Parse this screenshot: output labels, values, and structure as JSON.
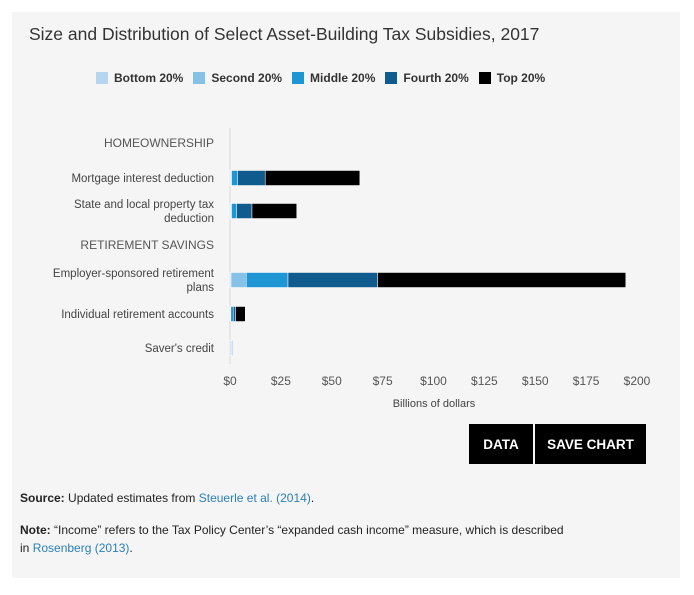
{
  "title": "Size and Distribution of Select Asset-Building Tax Subsidies, 2017",
  "colors": {
    "bottom": "#b7d5ef",
    "second": "#86c1e8",
    "middle": "#1f96d4",
    "fourth": "#0f5b8d",
    "top": "#000000"
  },
  "chart_data": {
    "type": "bar",
    "orientation": "horizontal",
    "stacked": true,
    "title": "Size and Distribution of Select Asset-Building Tax Subsidies, 2017",
    "xlabel": "Billions of dollars",
    "xlim": [
      0,
      200
    ],
    "xticks": [
      0,
      25,
      50,
      75,
      100,
      125,
      150,
      175,
      200
    ],
    "xtick_labels": [
      "$0",
      "$25",
      "$50",
      "$75",
      "$100",
      "$125",
      "$150",
      "$175",
      "$200"
    ],
    "legend_position": "top",
    "grid": false,
    "rows": [
      {
        "label": "HOMEOWNERSHIP",
        "is_header": true,
        "values": []
      },
      {
        "label": "Mortgage interest deduction",
        "is_header": false,
        "values": [
          0.3,
          0.5,
          3,
          13.5,
          46.5
        ]
      },
      {
        "label": "State and local property tax deduction",
        "label_lines": [
          "State and local property tax",
          "deduction"
        ],
        "is_header": false,
        "values": [
          0.3,
          0.5,
          2.5,
          7.5,
          22
        ]
      },
      {
        "label": "RETIREMENT SAVINGS",
        "is_header": true,
        "values": []
      },
      {
        "label": "Employer-sponsored retirement plans",
        "label_lines": [
          "Employer-sponsored retirement",
          "plans"
        ],
        "is_header": false,
        "values": [
          0.5,
          7.5,
          20.5,
          44,
          122
        ]
      },
      {
        "label": "Individual retirement accounts",
        "is_header": false,
        "values": [
          0.1,
          0.3,
          1.2,
          1.2,
          4.7
        ]
      },
      {
        "label": "Saver's credit",
        "is_header": false,
        "values": [
          0.2,
          0.4,
          0.4,
          0.2,
          0
        ]
      }
    ],
    "series": [
      {
        "name": "Bottom 20%",
        "color": "#b7d5ef"
      },
      {
        "name": "Second 20%",
        "color": "#86c1e8"
      },
      {
        "name": "Middle 20%",
        "color": "#1f96d4"
      },
      {
        "name": "Fourth 20%",
        "color": "#0f5b8d"
      },
      {
        "name": "Top 20%",
        "color": "#000000"
      }
    ]
  },
  "buttons": {
    "data": "DATA",
    "save_chart": "SAVE CHART"
  },
  "source": {
    "label": "Source:",
    "text": " Updated estimates from ",
    "link": "Steuerle et al. (2014)",
    "end": "."
  },
  "note": {
    "label": "Note:",
    "text1": " “Income” refers to the Tax Policy Center’s “expanded cash income” measure, which is described",
    "text2": "in ",
    "link": "Rosenberg (2013)",
    "end": "."
  }
}
